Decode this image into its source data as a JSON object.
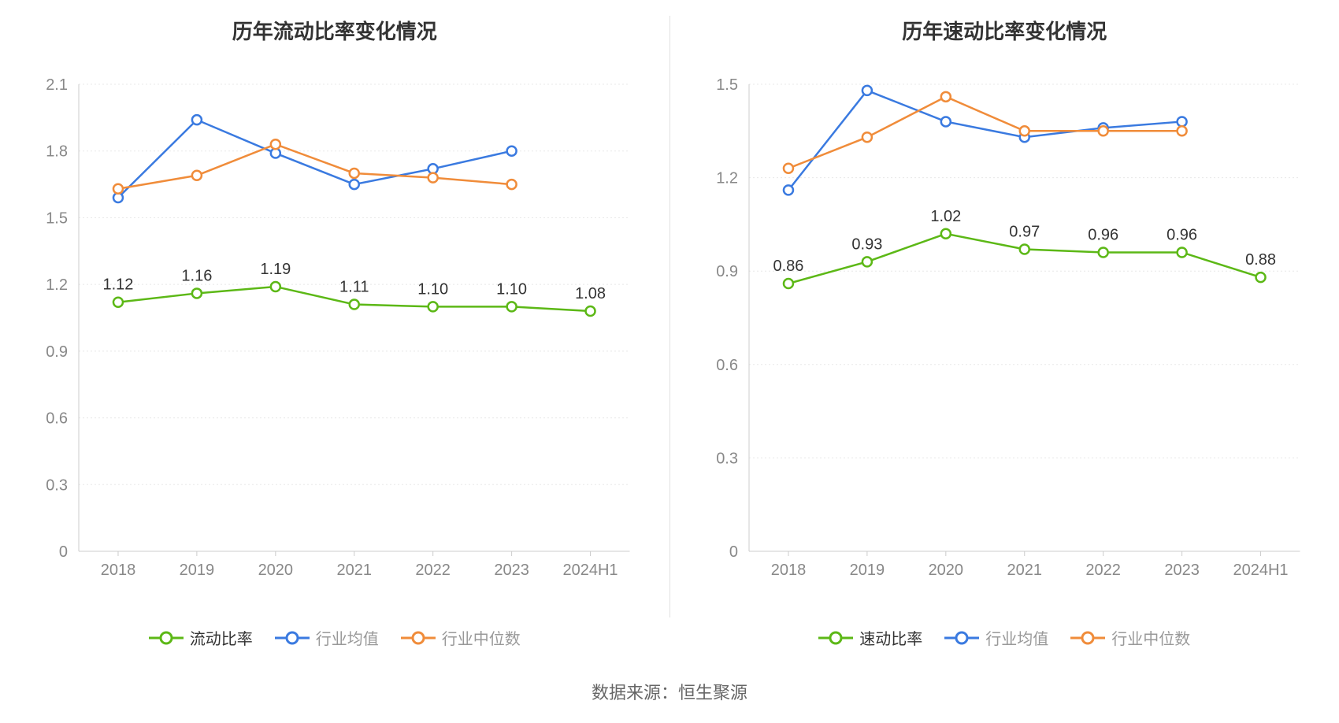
{
  "source_text": "数据来源：恒生聚源",
  "colors": {
    "primary_series": "#5CB816",
    "industry_avg": "#3A7AE0",
    "industry_median": "#F08C3A",
    "grid": "#e8e8e8",
    "axis": "#cccccc",
    "axis_text": "#888888",
    "value_label": "#333333",
    "title": "#333333",
    "legend_secondary": "#999999",
    "background": "#ffffff",
    "divider": "#e0e0e0"
  },
  "left_chart": {
    "title": "历年流动比率变化情况",
    "type": "line",
    "categories": [
      "2018",
      "2019",
      "2020",
      "2021",
      "2022",
      "2023",
      "2024H1"
    ],
    "ylim": [
      0,
      2.1
    ],
    "ytick_step": 0.3,
    "yticks": [
      "0",
      "0.3",
      "0.6",
      "0.9",
      "1.2",
      "1.5",
      "1.8",
      "2.1"
    ],
    "line_width": 2.5,
    "marker_radius": 6,
    "marker_fill": "#ffffff",
    "marker_stroke_width": 2.5,
    "label_fontsize": 20,
    "axis_fontsize": 20,
    "title_fontsize": 26,
    "series": [
      {
        "key": "current_ratio",
        "name": "流动比率",
        "color": "#5CB816",
        "show_labels": true,
        "values": [
          1.12,
          1.16,
          1.19,
          1.11,
          1.1,
          1.1,
          1.08
        ],
        "labels": [
          "1.12",
          "1.16",
          "1.19",
          "1.11",
          "1.10",
          "1.10",
          "1.08"
        ]
      },
      {
        "key": "industry_avg",
        "name": "行业均值",
        "color": "#3A7AE0",
        "show_labels": false,
        "values": [
          1.59,
          1.94,
          1.79,
          1.65,
          1.72,
          1.8,
          null
        ]
      },
      {
        "key": "industry_median",
        "name": "行业中位数",
        "color": "#F08C3A",
        "show_labels": false,
        "values": [
          1.63,
          1.69,
          1.83,
          1.7,
          1.68,
          1.65,
          null
        ]
      }
    ],
    "legend": [
      {
        "label": "流动比率",
        "color": "#5CB816",
        "style": "primary"
      },
      {
        "label": "行业均值",
        "color": "#3A7AE0",
        "style": "secondary"
      },
      {
        "label": "行业中位数",
        "color": "#F08C3A",
        "style": "secondary"
      }
    ]
  },
  "right_chart": {
    "title": "历年速动比率变化情况",
    "type": "line",
    "categories": [
      "2018",
      "2019",
      "2020",
      "2021",
      "2022",
      "2023",
      "2024H1"
    ],
    "ylim": [
      0,
      1.5
    ],
    "ytick_step": 0.3,
    "yticks": [
      "0",
      "0.3",
      "0.6",
      "0.9",
      "1.2",
      "1.5"
    ],
    "line_width": 2.5,
    "marker_radius": 6,
    "marker_fill": "#ffffff",
    "marker_stroke_width": 2.5,
    "label_fontsize": 20,
    "axis_fontsize": 20,
    "title_fontsize": 26,
    "series": [
      {
        "key": "quick_ratio",
        "name": "速动比率",
        "color": "#5CB816",
        "show_labels": true,
        "values": [
          0.86,
          0.93,
          1.02,
          0.97,
          0.96,
          0.96,
          0.88
        ],
        "labels": [
          "0.86",
          "0.93",
          "1.02",
          "0.97",
          "0.96",
          "0.96",
          "0.88"
        ]
      },
      {
        "key": "industry_avg",
        "name": "行业均值",
        "color": "#3A7AE0",
        "show_labels": false,
        "values": [
          1.16,
          1.48,
          1.38,
          1.33,
          1.36,
          1.38,
          null
        ]
      },
      {
        "key": "industry_median",
        "name": "行业中位数",
        "color": "#F08C3A",
        "show_labels": false,
        "values": [
          1.23,
          1.33,
          1.46,
          1.35,
          1.35,
          1.35,
          null
        ]
      }
    ],
    "legend": [
      {
        "label": "速动比率",
        "color": "#5CB816",
        "style": "primary"
      },
      {
        "label": "行业均值",
        "color": "#3A7AE0",
        "style": "secondary"
      },
      {
        "label": "行业中位数",
        "color": "#F08C3A",
        "style": "secondary"
      }
    ]
  }
}
